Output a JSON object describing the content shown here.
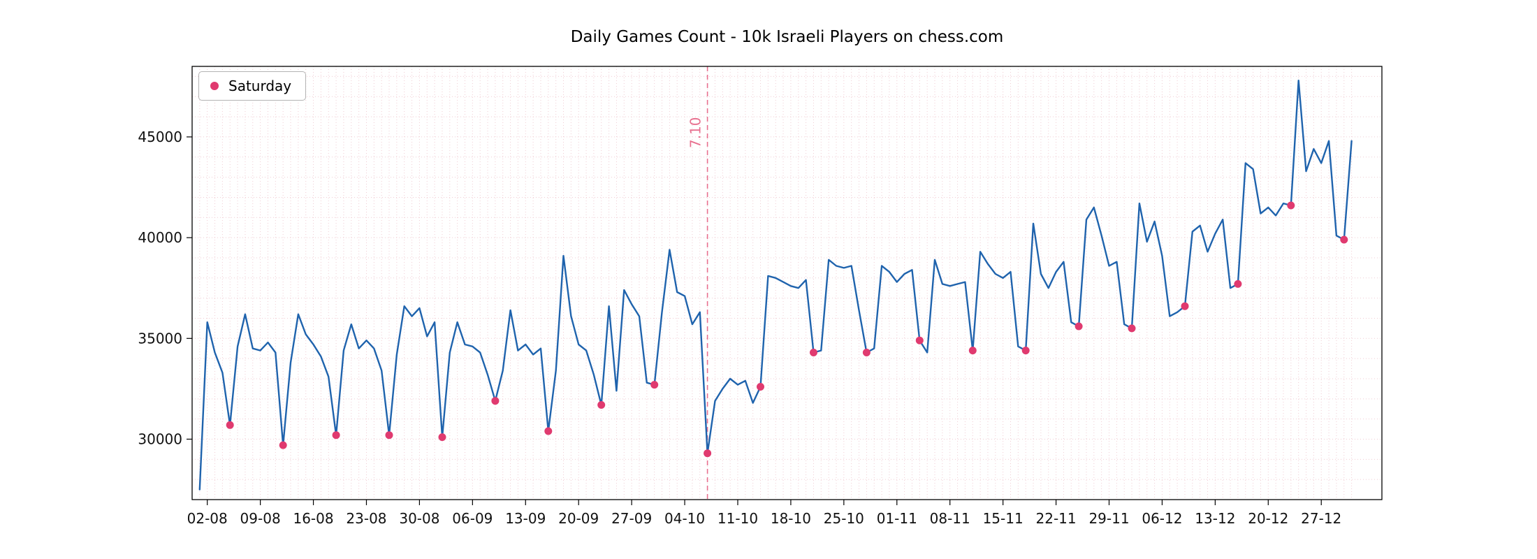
{
  "figure": {
    "title": "Daily Games Count - 10k Israeli Players on chess.com"
  },
  "legend": {
    "label": "Saturday"
  },
  "chart_data": {
    "type": "line",
    "title": "Daily Games Count - 10k Israeli Players on chess.com",
    "xlabel": "",
    "ylabel": "",
    "ylim": [
      27000,
      48500
    ],
    "grid": true,
    "legend_position": "upper-left",
    "line_color": "#1f63ad",
    "saturday_color": "#e03a6f",
    "grid_color": "#f0ccd3",
    "axis_color": "#000000",
    "tick_label_color": "#111111",
    "y_ticks": [
      30000,
      35000,
      40000,
      45000
    ],
    "y_grid_step": 1000,
    "y_grid_range": [
      28000,
      48000
    ],
    "x_tick_labels": [
      "02-08",
      "09-08",
      "16-08",
      "23-08",
      "30-08",
      "06-09",
      "13-09",
      "20-09",
      "27-09",
      "04-10",
      "11-10",
      "18-10",
      "25-10",
      "01-11",
      "08-11",
      "15-11",
      "22-11",
      "29-11",
      "06-12",
      "13-12",
      "20-12",
      "27-12"
    ],
    "x_tick_indices": [
      1,
      8,
      15,
      22,
      29,
      36,
      43,
      50,
      57,
      64,
      71,
      78,
      85,
      92,
      99,
      106,
      113,
      120,
      127,
      134,
      141,
      148
    ],
    "event_line": {
      "label": "7.10",
      "date": "07-10",
      "index": 67,
      "color": "#e8708f",
      "style": "dashed"
    },
    "series_name": "Daily games count",
    "dates": [
      "01-08",
      "02-08",
      "03-08",
      "04-08",
      "05-08",
      "06-08",
      "07-08",
      "08-08",
      "09-08",
      "10-08",
      "11-08",
      "12-08",
      "13-08",
      "14-08",
      "15-08",
      "16-08",
      "17-08",
      "18-08",
      "19-08",
      "20-08",
      "21-08",
      "22-08",
      "23-08",
      "24-08",
      "25-08",
      "26-08",
      "27-08",
      "28-08",
      "29-08",
      "30-08",
      "31-08",
      "01-09",
      "02-09",
      "03-09",
      "04-09",
      "05-09",
      "06-09",
      "07-09",
      "08-09",
      "09-09",
      "10-09",
      "11-09",
      "12-09",
      "13-09",
      "14-09",
      "15-09",
      "16-09",
      "17-09",
      "18-09",
      "19-09",
      "20-09",
      "21-09",
      "22-09",
      "23-09",
      "24-09",
      "25-09",
      "26-09",
      "27-09",
      "28-09",
      "29-09",
      "30-09",
      "01-10",
      "02-10",
      "03-10",
      "04-10",
      "05-10",
      "06-10",
      "07-10",
      "08-10",
      "09-10",
      "10-10",
      "11-10",
      "12-10",
      "13-10",
      "14-10",
      "15-10",
      "16-10",
      "17-10",
      "18-10",
      "19-10",
      "20-10",
      "21-10",
      "22-10",
      "23-10",
      "24-10",
      "25-10",
      "26-10",
      "27-10",
      "28-10",
      "29-10",
      "30-10",
      "31-10",
      "01-11",
      "02-11",
      "03-11",
      "04-11",
      "05-11",
      "06-11",
      "07-11",
      "08-11",
      "09-11",
      "10-11",
      "11-11",
      "12-11",
      "13-11",
      "14-11",
      "15-11",
      "16-11",
      "17-11",
      "18-11",
      "19-11",
      "20-11",
      "21-11",
      "22-11",
      "23-11",
      "24-11",
      "25-11",
      "26-11",
      "27-11",
      "28-11",
      "29-11",
      "30-11",
      "01-12",
      "02-12",
      "03-12",
      "04-12",
      "05-12",
      "06-12",
      "07-12",
      "08-12",
      "09-12",
      "10-12",
      "11-12",
      "12-12",
      "13-12",
      "14-12",
      "15-12",
      "16-12",
      "17-12",
      "18-12",
      "19-12",
      "20-12",
      "21-12",
      "22-12",
      "23-12",
      "24-12",
      "25-12",
      "26-12",
      "27-12",
      "28-12",
      "29-12",
      "30-12",
      "31-12"
    ],
    "values": [
      27500,
      35800,
      34300,
      33300,
      30700,
      34600,
      36200,
      34500,
      34400,
      34800,
      34300,
      29700,
      33800,
      36200,
      35200,
      34700,
      34100,
      33100,
      30200,
      34400,
      35700,
      34500,
      34900,
      34500,
      33400,
      30200,
      34200,
      36600,
      36100,
      36500,
      35100,
      35800,
      30100,
      34300,
      35800,
      34700,
      34600,
      34300,
      33200,
      31900,
      33400,
      36400,
      34400,
      34700,
      34200,
      34500,
      30400,
      33400,
      39100,
      36100,
      34700,
      34400,
      33200,
      31700,
      36600,
      32400,
      37400,
      36700,
      36100,
      32800,
      32700,
      36300,
      39400,
      37300,
      37100,
      35700,
      36300,
      29300,
      31900,
      32500,
      33000,
      32700,
      32900,
      31800,
      32600,
      38100,
      38000,
      37800,
      37600,
      37500,
      37900,
      34300,
      34400,
      38900,
      38600,
      38500,
      38600,
      36400,
      34300,
      34500,
      38600,
      38300,
      37800,
      38200,
      38400,
      34900,
      34300,
      38900,
      37700,
      37600,
      37700,
      37800,
      34400,
      39300,
      38700,
      38200,
      38000,
      38300,
      34600,
      34400,
      40700,
      38200,
      37500,
      38300,
      38800,
      35800,
      35600,
      40900,
      41500,
      40100,
      38600,
      38800,
      35700,
      35500,
      41700,
      39800,
      40800,
      39100,
      36100,
      36300,
      36600,
      40300,
      40600,
      39300,
      40200,
      40900,
      37500,
      37700,
      43700,
      43400,
      41200,
      41500,
      41100,
      41700,
      41600,
      47800,
      43300,
      44400,
      43700,
      44800,
      40100,
      39900,
      44800
    ],
    "saturday_indices": [
      4,
      11,
      18,
      25,
      32,
      39,
      46,
      53,
      60,
      67,
      74,
      81,
      88,
      95,
      102,
      109,
      116,
      123,
      130,
      137,
      144,
      151
    ],
    "saturday_label": "Saturday"
  }
}
